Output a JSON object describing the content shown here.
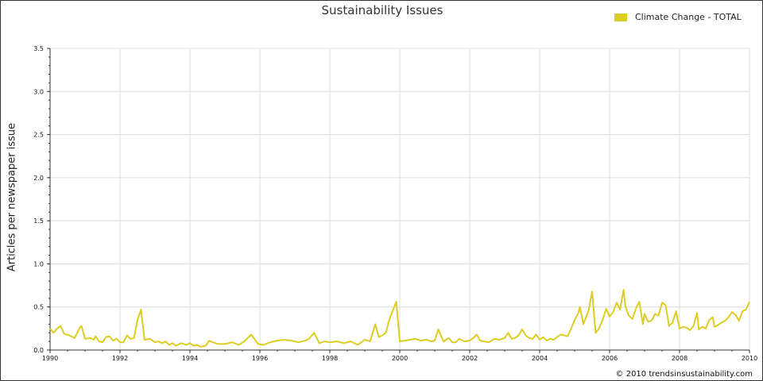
{
  "chart_data": {
    "type": "line",
    "title": "Sustainability Issues",
    "ylabel": "Articles per newspaper issue",
    "xlabel": "",
    "ylim": [
      0,
      3.5
    ],
    "xlim": [
      1990,
      2010
    ],
    "x_ticks": [
      "1990",
      "1992",
      "1994",
      "1996",
      "1998",
      "2000",
      "2002",
      "2004",
      "2006",
      "2008",
      "2010"
    ],
    "y_ticks": [
      "0.0",
      "0.5",
      "1.0",
      "1.5",
      "2.0",
      "2.5",
      "3.0",
      "3.5"
    ],
    "legend_position": "top-right",
    "grid": true,
    "series": [
      {
        "name": "Climate Change - TOTAL",
        "color": "#dccd22",
        "points": [
          [
            1990.0,
            0.25
          ],
          [
            1990.1,
            0.2
          ],
          [
            1990.2,
            0.25
          ],
          [
            1990.3,
            0.28
          ],
          [
            1990.4,
            0.19
          ],
          [
            1990.55,
            0.17
          ],
          [
            1990.7,
            0.14
          ],
          [
            1990.85,
            0.26
          ],
          [
            1990.9,
            0.28
          ],
          [
            1991.0,
            0.13
          ],
          [
            1991.15,
            0.14
          ],
          [
            1991.25,
            0.12
          ],
          [
            1991.3,
            0.16
          ],
          [
            1991.4,
            0.1
          ],
          [
            1991.5,
            0.09
          ],
          [
            1991.6,
            0.15
          ],
          [
            1991.7,
            0.16
          ],
          [
            1991.8,
            0.11
          ],
          [
            1991.9,
            0.13
          ],
          [
            1992.0,
            0.09
          ],
          [
            1992.1,
            0.09
          ],
          [
            1992.2,
            0.17
          ],
          [
            1992.3,
            0.13
          ],
          [
            1992.4,
            0.14
          ],
          [
            1992.5,
            0.35
          ],
          [
            1992.6,
            0.47
          ],
          [
            1992.7,
            0.12
          ],
          [
            1992.85,
            0.13
          ],
          [
            1993.0,
            0.09
          ],
          [
            1993.1,
            0.1
          ],
          [
            1993.2,
            0.08
          ],
          [
            1993.3,
            0.1
          ],
          [
            1993.4,
            0.06
          ],
          [
            1993.5,
            0.08
          ],
          [
            1993.6,
            0.05
          ],
          [
            1993.75,
            0.08
          ],
          [
            1993.9,
            0.06
          ],
          [
            1994.0,
            0.08
          ],
          [
            1994.1,
            0.05
          ],
          [
            1994.2,
            0.06
          ],
          [
            1994.3,
            0.04
          ],
          [
            1994.45,
            0.05
          ],
          [
            1994.55,
            0.11
          ],
          [
            1994.65,
            0.09
          ],
          [
            1994.8,
            0.07
          ],
          [
            1995.0,
            0.07
          ],
          [
            1995.2,
            0.09
          ],
          [
            1995.4,
            0.06
          ],
          [
            1995.55,
            0.1
          ],
          [
            1995.75,
            0.18
          ],
          [
            1995.95,
            0.07
          ],
          [
            1996.1,
            0.06
          ],
          [
            1996.3,
            0.09
          ],
          [
            1996.5,
            0.11
          ],
          [
            1996.7,
            0.12
          ],
          [
            1996.9,
            0.11
          ],
          [
            1997.1,
            0.09
          ],
          [
            1997.3,
            0.11
          ],
          [
            1997.4,
            0.13
          ],
          [
            1997.55,
            0.2
          ],
          [
            1997.7,
            0.08
          ],
          [
            1997.85,
            0.1
          ],
          [
            1998.0,
            0.09
          ],
          [
            1998.2,
            0.1
          ],
          [
            1998.4,
            0.08
          ],
          [
            1998.6,
            0.1
          ],
          [
            1998.8,
            0.06
          ],
          [
            1999.0,
            0.12
          ],
          [
            1999.15,
            0.1
          ],
          [
            1999.3,
            0.3
          ],
          [
            1999.4,
            0.15
          ],
          [
            1999.5,
            0.17
          ],
          [
            1999.6,
            0.2
          ],
          [
            1999.7,
            0.35
          ],
          [
            1999.8,
            0.46
          ],
          [
            1999.9,
            0.56
          ],
          [
            2000.0,
            0.1
          ],
          [
            2000.15,
            0.11
          ],
          [
            2000.3,
            0.12
          ],
          [
            2000.45,
            0.13
          ],
          [
            2000.6,
            0.11
          ],
          [
            2000.75,
            0.12
          ],
          [
            2000.9,
            0.1
          ],
          [
            2001.0,
            0.11
          ],
          [
            2001.1,
            0.24
          ],
          [
            2001.25,
            0.1
          ],
          [
            2001.4,
            0.14
          ],
          [
            2001.5,
            0.09
          ],
          [
            2001.6,
            0.09
          ],
          [
            2001.7,
            0.13
          ],
          [
            2001.85,
            0.1
          ],
          [
            2002.0,
            0.11
          ],
          [
            2002.1,
            0.14
          ],
          [
            2002.2,
            0.18
          ],
          [
            2002.3,
            0.11
          ],
          [
            2002.4,
            0.1
          ],
          [
            2002.55,
            0.09
          ],
          [
            2002.7,
            0.13
          ],
          [
            2002.85,
            0.12
          ],
          [
            2003.0,
            0.14
          ],
          [
            2003.1,
            0.2
          ],
          [
            2003.2,
            0.13
          ],
          [
            2003.3,
            0.14
          ],
          [
            2003.4,
            0.17
          ],
          [
            2003.5,
            0.24
          ],
          [
            2003.6,
            0.17
          ],
          [
            2003.7,
            0.14
          ],
          [
            2003.8,
            0.13
          ],
          [
            2003.9,
            0.18
          ],
          [
            2004.0,
            0.12
          ],
          [
            2004.1,
            0.15
          ],
          [
            2004.2,
            0.11
          ],
          [
            2004.3,
            0.13
          ],
          [
            2004.4,
            0.12
          ],
          [
            2004.5,
            0.15
          ],
          [
            2004.6,
            0.18
          ],
          [
            2004.7,
            0.17
          ],
          [
            2004.8,
            0.16
          ],
          [
            2004.9,
            0.25
          ],
          [
            2005.0,
            0.35
          ],
          [
            2005.1,
            0.42
          ],
          [
            2005.15,
            0.5
          ],
          [
            2005.25,
            0.3
          ],
          [
            2005.4,
            0.46
          ],
          [
            2005.5,
            0.68
          ],
          [
            2005.6,
            0.2
          ],
          [
            2005.7,
            0.25
          ],
          [
            2005.8,
            0.35
          ],
          [
            2005.9,
            0.48
          ],
          [
            2006.0,
            0.39
          ],
          [
            2006.1,
            0.44
          ],
          [
            2006.2,
            0.55
          ],
          [
            2006.3,
            0.47
          ],
          [
            2006.4,
            0.7
          ],
          [
            2006.45,
            0.51
          ],
          [
            2006.55,
            0.4
          ],
          [
            2006.65,
            0.36
          ],
          [
            2006.75,
            0.48
          ],
          [
            2006.85,
            0.56
          ],
          [
            2006.95,
            0.3
          ],
          [
            2007.0,
            0.42
          ],
          [
            2007.1,
            0.33
          ],
          [
            2007.2,
            0.34
          ],
          [
            2007.3,
            0.42
          ],
          [
            2007.4,
            0.4
          ],
          [
            2007.5,
            0.55
          ],
          [
            2007.6,
            0.52
          ],
          [
            2007.7,
            0.28
          ],
          [
            2007.8,
            0.32
          ],
          [
            2007.9,
            0.45
          ],
          [
            2008.0,
            0.25
          ],
          [
            2008.1,
            0.27
          ],
          [
            2008.2,
            0.26
          ],
          [
            2008.3,
            0.23
          ],
          [
            2008.4,
            0.28
          ],
          [
            2008.5,
            0.43
          ],
          [
            2008.55,
            0.24
          ],
          [
            2008.65,
            0.27
          ],
          [
            2008.75,
            0.25
          ],
          [
            2008.85,
            0.35
          ],
          [
            2008.95,
            0.38
          ],
          [
            2009.0,
            0.27
          ],
          [
            2009.1,
            0.29
          ],
          [
            2009.2,
            0.32
          ],
          [
            2009.3,
            0.34
          ],
          [
            2009.4,
            0.38
          ],
          [
            2009.5,
            0.44
          ],
          [
            2009.6,
            0.41
          ],
          [
            2009.7,
            0.34
          ],
          [
            2009.8,
            0.45
          ],
          [
            2009.9,
            0.47
          ],
          [
            2010.0,
            0.56
          ]
        ]
      }
    ]
  },
  "legend": {
    "label": "Climate Change - TOTAL"
  },
  "copyright": "© 2010 trendsinsustainability.com"
}
